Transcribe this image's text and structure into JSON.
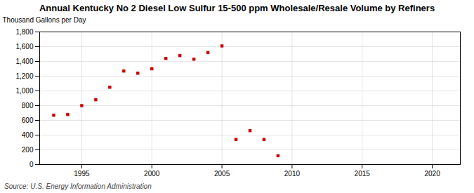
{
  "chart_data": {
    "type": "scatter",
    "title": "Annual Kentucky No 2 Diesel Low Sulfur 15-500 ppm Wholesale/Resale Volume by Refiners",
    "ylabel": "Thousand Gallons per Day",
    "annotations": [
      "Source: U.S. Energy Information Administration"
    ],
    "x": [
      1993,
      1994,
      1995,
      1996,
      1997,
      1998,
      1999,
      2000,
      2001,
      2002,
      2003,
      2004,
      2005,
      2006,
      2007,
      2008,
      2009
    ],
    "values": [
      670,
      680,
      800,
      880,
      1050,
      1270,
      1240,
      1300,
      1440,
      1480,
      1430,
      1520,
      1610,
      340,
      460,
      340,
      120
    ],
    "color": "#cc0000",
    "marker": "square",
    "xlim": [
      1992,
      2022
    ],
    "xticks": [
      1995,
      2000,
      2005,
      2010,
      2015,
      2020
    ],
    "ylim": [
      0,
      1800
    ],
    "yticks": [
      0,
      200,
      400,
      600,
      800,
      {
        "value": 1000,
        "label": "1,000"
      },
      {
        "value": 1200,
        "label": "1,200"
      },
      {
        "value": 1400,
        "label": "1,400"
      },
      {
        "value": 1600,
        "label": "1,600"
      },
      {
        "value": 1800,
        "label": "1,800"
      }
    ],
    "grid": true
  }
}
